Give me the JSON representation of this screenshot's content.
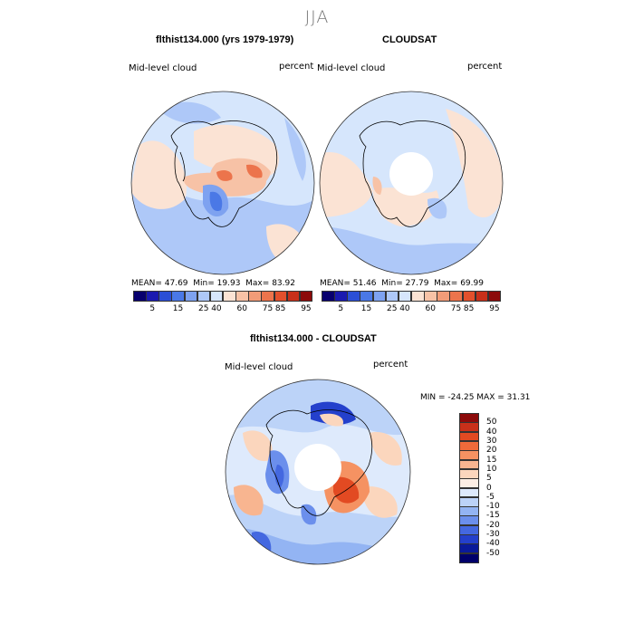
{
  "figure": {
    "title": "JJA"
  },
  "panels": [
    {
      "title": "flthist134.000 (yrs 1979-1979)",
      "variable_label": "Mid-level cloud",
      "units_label": "percent",
      "stats": {
        "mean_label": "MEAN=",
        "mean": "47.69",
        "min_label": "Min=",
        "min": "19.93",
        "max_label": "Max=",
        "max": "83.92"
      },
      "colorbar_ticks": [
        "5",
        "15",
        "25",
        "40",
        "60",
        "75",
        "85",
        "95"
      ]
    },
    {
      "title": "CLOUDSAT",
      "variable_label": "Mid-level cloud",
      "units_label": "percent",
      "stats": {
        "mean_label": "MEAN=",
        "mean": "51.46",
        "min_label": "Min=",
        "min": "27.79",
        "max_label": "Max=",
        "max": "69.99"
      },
      "colorbar_ticks": [
        "5",
        "15",
        "25",
        "40",
        "60",
        "75",
        "85",
        "95"
      ]
    },
    {
      "title": "flthist134.000 - CLOUDSAT",
      "variable_label": "Mid-level cloud",
      "units_label": "percent",
      "stats_text": "MIN = -24.25 MAX =  31.31",
      "colorbar_labels": [
        "50",
        "40",
        "30",
        "20",
        "15",
        "10",
        "5",
        "0",
        "-5",
        "-10",
        "-15",
        "-20",
        "-30",
        "-40",
        "-50"
      ]
    }
  ],
  "colors": {
    "abs_scale": [
      "#08006e",
      "#1a1ab0",
      "#2b4fd6",
      "#4a78e6",
      "#7ea2f0",
      "#aec8f8",
      "#d6e6fc",
      "#fbe3d4",
      "#f7c2a6",
      "#f29c78",
      "#ec744c",
      "#e2502c",
      "#c8301a",
      "#8c0a0a"
    ],
    "diff_scale": [
      "#8c0a0a",
      "#c8301a",
      "#e24a22",
      "#ee6a3a",
      "#f59262",
      "#f8b590",
      "#fbd6bd",
      "#fdeee4",
      "#deeafc",
      "#bcd3f8",
      "#93b4f3",
      "#6b8fec",
      "#4468e0",
      "#2440cc",
      "#0a1a9a",
      "#00006a"
    ],
    "land_outline": "#000000"
  }
}
